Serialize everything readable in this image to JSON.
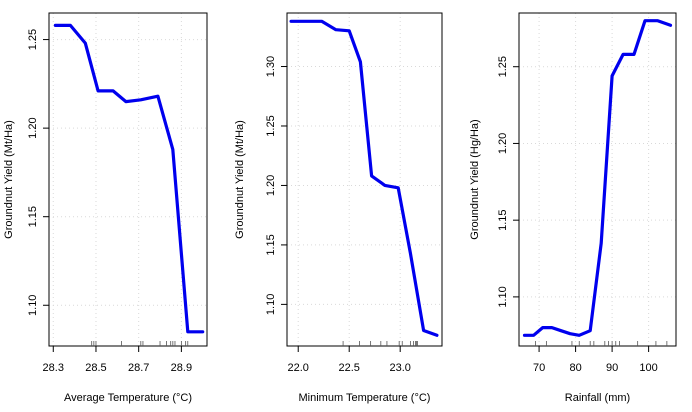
{
  "chart_data": [
    {
      "type": "line",
      "xlabel": "Average Temperature (°C)",
      "ylabel": "Groundnut Yield (Mt/Ha)",
      "xlim": [
        28.28,
        29.02
      ],
      "ylim": [
        1.077,
        1.265
      ],
      "xticks": [
        28.3,
        28.5,
        28.7,
        28.9
      ],
      "xtick_labels": [
        "28.3",
        "28.5",
        "28.7",
        "28.9"
      ],
      "yticks": [
        1.1,
        1.15,
        1.2,
        1.25
      ],
      "ytick_labels": [
        "1.10",
        "1.15",
        "1.20",
        "1.25"
      ],
      "grid": true,
      "color": "#0000ee",
      "x": [
        28.31,
        28.38,
        28.45,
        28.51,
        28.58,
        28.64,
        28.71,
        28.79,
        28.86,
        28.93,
        29.0
      ],
      "y": [
        1.258,
        1.258,
        1.248,
        1.221,
        1.221,
        1.215,
        1.216,
        1.218,
        1.188,
        1.085,
        1.085
      ],
      "rug": [
        28.48,
        28.49,
        28.5,
        28.62,
        28.71,
        28.72,
        28.8,
        28.83,
        28.85,
        28.86,
        28.87,
        28.9,
        28.92,
        28.93
      ]
    },
    {
      "type": "line",
      "xlabel": "Minimum Temperature (°C)",
      "ylabel": "Groundnut Yield (Mt/Ha)",
      "xlim": [
        21.89,
        23.41
      ],
      "ylim": [
        1.065,
        1.345
      ],
      "xticks": [
        22.0,
        22.5,
        23.0
      ],
      "xtick_labels": [
        "22.0",
        "22.5",
        "23.0"
      ],
      "yticks": [
        1.1,
        1.15,
        1.2,
        1.25,
        1.3
      ],
      "ytick_labels": [
        "1.10",
        "1.15",
        "1.20",
        "1.25",
        "1.30"
      ],
      "grid": true,
      "color": "#0000ee",
      "x": [
        21.93,
        22.08,
        22.23,
        22.37,
        22.5,
        22.61,
        22.72,
        22.85,
        22.98,
        23.1,
        23.23,
        23.36
      ],
      "y": [
        1.338,
        1.338,
        1.338,
        1.331,
        1.33,
        1.304,
        1.208,
        1.2,
        1.198,
        1.143,
        1.078,
        1.074
      ],
      "rug": [
        22.44,
        22.6,
        22.71,
        22.81,
        22.87,
        22.99,
        23.02,
        23.1,
        23.13,
        23.15,
        23.16,
        23.17
      ]
    },
    {
      "type": "line",
      "xlabel": "Rainfall (mm)",
      "ylabel": "Groundnut Yield (Hg/Ha)",
      "xlim": [
        64.5,
        107.5
      ],
      "ylim": [
        1.068,
        1.285
      ],
      "xticks": [
        70,
        80,
        90,
        100
      ],
      "xtick_labels": [
        "70",
        "80",
        "90",
        "100"
      ],
      "yticks": [
        1.1,
        1.15,
        1.2,
        1.25
      ],
      "ytick_labels": [
        "1.10",
        "1.15",
        "1.20",
        "1.25"
      ],
      "grid": true,
      "color": "#0000ee",
      "x": [
        66,
        68.5,
        71,
        73.5,
        76,
        78.5,
        81,
        84,
        87,
        90,
        93,
        96,
        99,
        102.5,
        106
      ],
      "y": [
        1.075,
        1.075,
        1.08,
        1.08,
        1.078,
        1.076,
        1.075,
        1.078,
        1.135,
        1.244,
        1.258,
        1.258,
        1.28,
        1.28,
        1.277
      ],
      "rug": [
        69,
        72,
        79,
        81,
        84,
        85,
        88,
        89,
        90,
        91,
        92,
        97,
        102,
        105
      ]
    }
  ]
}
